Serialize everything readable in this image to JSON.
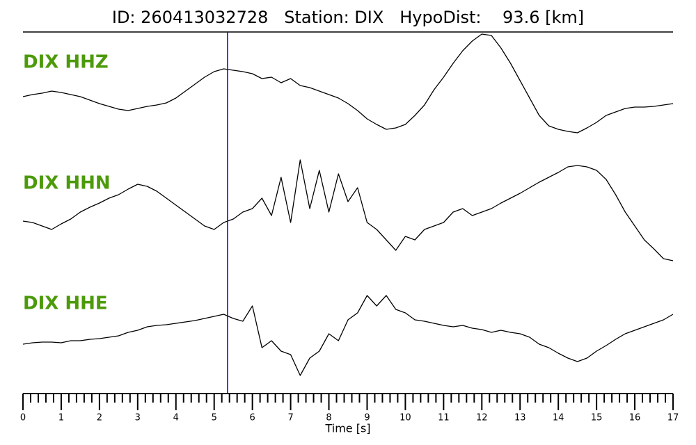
{
  "chart_data": {
    "type": "line",
    "title": "ID: 260413032728   Station: DIX   HypoDist:    93.6 [km]",
    "xlabel": "Time [s]",
    "xlim": [
      0,
      17
    ],
    "xticks": [
      0,
      1,
      2,
      3,
      4,
      5,
      6,
      7,
      8,
      9,
      10,
      11,
      12,
      13,
      14,
      15,
      16,
      17
    ],
    "xminorticks": [
      0.2,
      0.4,
      0.6,
      0.8,
      1.2,
      1.4,
      1.6,
      1.8,
      2.2,
      2.4,
      2.6,
      2.8,
      3.2,
      3.4,
      3.6,
      3.8,
      4.2,
      4.4,
      4.6,
      4.8,
      5.2,
      5.4,
      5.6,
      5.8,
      6.2,
      6.4,
      6.6,
      6.8,
      7.2,
      7.4,
      7.6,
      7.8,
      8.2,
      8.4,
      8.6,
      8.8,
      9.2,
      9.4,
      9.6,
      9.8,
      10.2,
      10.4,
      10.6,
      10.8,
      11.2,
      11.4,
      11.6,
      11.8,
      12.2,
      12.4,
      12.6,
      12.8,
      13.2,
      13.4,
      13.6,
      13.8,
      14.2,
      14.4,
      14.6,
      14.8,
      15.2,
      15.4,
      15.6,
      15.8,
      16.2,
      16.4,
      16.6,
      16.8
    ],
    "pick_time": 5.35,
    "pick_color": "#0000ff",
    "label_color": "#4c9a0a",
    "x": [
      0,
      0.25,
      0.5,
      0.75,
      1,
      1.25,
      1.5,
      1.75,
      2,
      2.25,
      2.5,
      2.75,
      3,
      3.25,
      3.5,
      3.75,
      4,
      4.25,
      4.5,
      4.75,
      5,
      5.25,
      5.5,
      5.75,
      6,
      6.25,
      6.5,
      6.75,
      7,
      7.25,
      7.5,
      7.75,
      8,
      8.25,
      8.5,
      8.75,
      9,
      9.25,
      9.5,
      9.75,
      10,
      10.25,
      10.5,
      10.75,
      11,
      11.25,
      11.5,
      11.75,
      12,
      12.25,
      12.5,
      12.75,
      13,
      13.25,
      13.5,
      13.75,
      14,
      14.25,
      14.5,
      14.75,
      15,
      15.25,
      15.5,
      15.75,
      16,
      16.25,
      16.5,
      16.75,
      17
    ],
    "series": [
      {
        "name": "DIX HHZ",
        "color": "#000000",
        "ylim": [
          -75,
          75
        ],
        "values": [
          -18,
          -15,
          -13,
          -10,
          -12,
          -15,
          -18,
          -23,
          -28,
          -32,
          -36,
          -38,
          -35,
          -32,
          -30,
          -27,
          -20,
          -10,
          0,
          10,
          18,
          22,
          20,
          18,
          15,
          8,
          10,
          2,
          8,
          -2,
          -5,
          -10,
          -15,
          -20,
          -28,
          -38,
          -50,
          -58,
          -65,
          -63,
          -58,
          -45,
          -30,
          -8,
          10,
          30,
          48,
          62,
          72,
          70,
          52,
          30,
          5,
          -20,
          -45,
          -60,
          -65,
          -68,
          -70,
          -63,
          -55,
          -45,
          -40,
          -35,
          -33,
          -33,
          -32,
          -30,
          -28
        ]
      },
      {
        "name": "DIX HHN",
        "color": "#000000",
        "ylim": [
          -85,
          85
        ],
        "values": [
          -18,
          -20,
          -25,
          -30,
          -22,
          -15,
          -5,
          2,
          8,
          15,
          20,
          28,
          35,
          32,
          25,
          15,
          5,
          -5,
          -15,
          -25,
          -30,
          -20,
          -15,
          -5,
          0,
          15,
          -10,
          45,
          -20,
          70,
          0,
          55,
          -5,
          50,
          10,
          30,
          -20,
          -30,
          -45,
          -60,
          -40,
          -45,
          -30,
          -25,
          -20,
          -5,
          0,
          -10,
          -5,
          0,
          8,
          15,
          22,
          30,
          38,
          45,
          52,
          60,
          62,
          60,
          55,
          42,
          20,
          -5,
          -25,
          -45,
          -58,
          -72,
          -75
        ]
      },
      {
        "name": "DIX HHE",
        "color": "#000000",
        "ylim": [
          -80,
          80
        ],
        "values": [
          -5,
          -3,
          -2,
          -2,
          -3,
          0,
          0,
          2,
          3,
          5,
          7,
          12,
          15,
          20,
          22,
          23,
          25,
          27,
          29,
          32,
          35,
          38,
          32,
          28,
          50,
          -10,
          0,
          -15,
          -20,
          -50,
          -25,
          -15,
          10,
          0,
          30,
          40,
          65,
          50,
          65,
          45,
          40,
          30,
          28,
          25,
          22,
          20,
          22,
          18,
          16,
          12,
          15,
          12,
          10,
          5,
          -5,
          -10,
          -18,
          -25,
          -30,
          -25,
          -15,
          -7,
          2,
          10,
          15,
          20,
          25,
          30,
          38
        ]
      }
    ]
  }
}
